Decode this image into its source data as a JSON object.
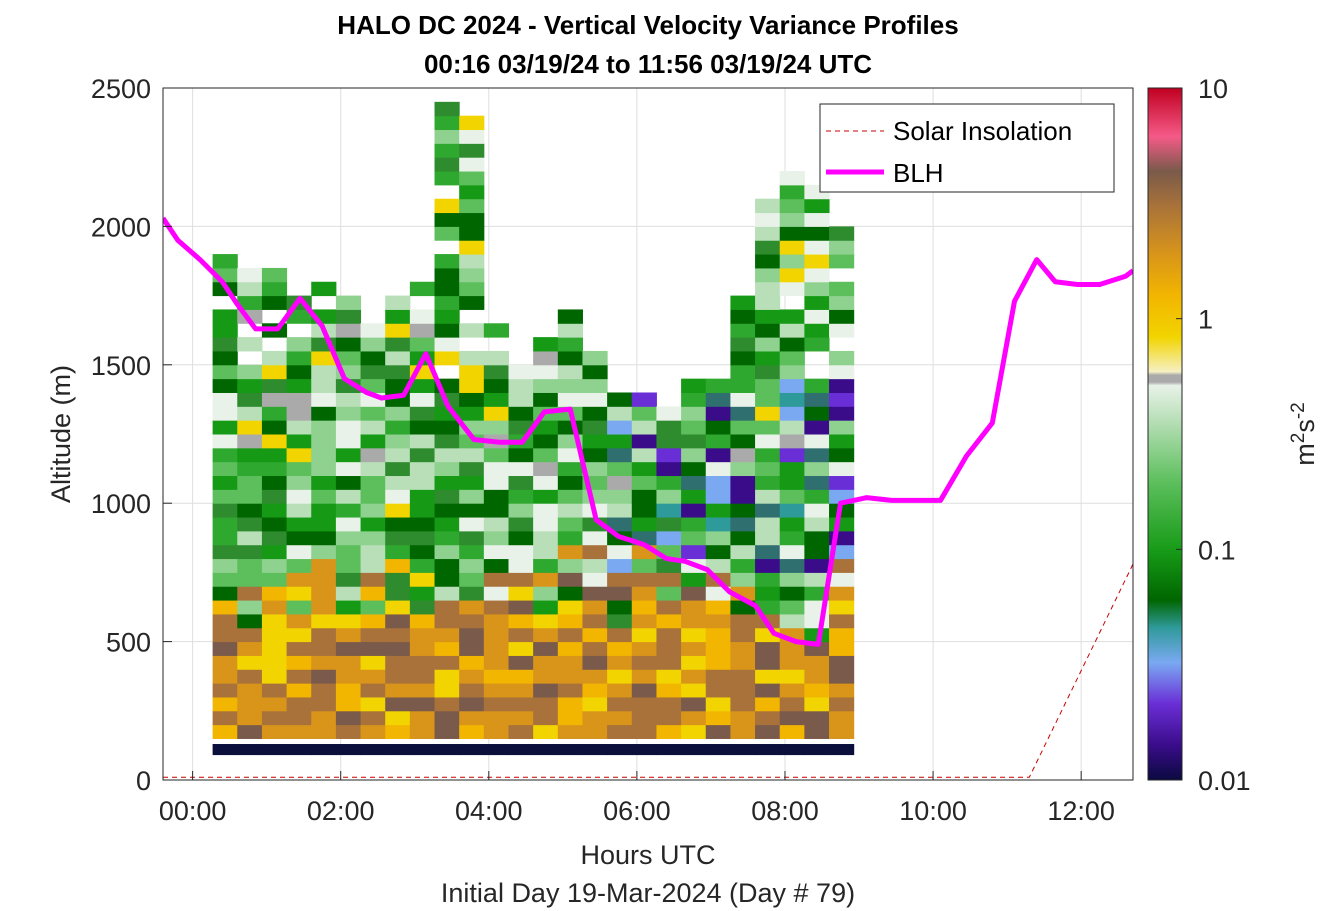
{
  "chart_data": {
    "type": "heatmap",
    "title": "HALO DC 2024 - Vertical Velocity Variance Profiles",
    "subtitle": "00:16 03/19/24 to 11:56 03/19/24  UTC",
    "xlabel": "Hours UTC",
    "xlabel2": "Initial Day 19-Mar-2024 (Day # 79)",
    "ylabel": "Altitude (m)",
    "colorbar_label_base": "m",
    "colorbar_label_sup1": "2",
    "colorbar_label_mid": "s",
    "colorbar_label_sup2": "-2",
    "xlim": [
      -0.4,
      12.7
    ],
    "ylim": [
      0,
      2500
    ],
    "x_ticks": [
      0,
      2,
      4,
      6,
      8,
      10,
      12
    ],
    "x_tick_labels": [
      "00:00",
      "02:00",
      "04:00",
      "06:00",
      "08:00",
      "10:00",
      "12:00"
    ],
    "y_ticks": [
      0,
      500,
      1000,
      1500,
      2000,
      2500
    ],
    "y_tick_labels": [
      "0",
      "500",
      "1000",
      "1500",
      "2000",
      "2500"
    ],
    "colorbar_scale": "log",
    "colorbar_range": [
      0.01,
      10
    ],
    "colorbar_ticks": [
      0.01,
      0.1,
      1,
      10
    ],
    "colorbar_tick_labels": [
      "0.01",
      "0.1",
      "1",
      "10"
    ],
    "grid": true,
    "legend_position": "top-right",
    "legend": [
      {
        "label": "Solar Insolation",
        "color": "#cc0000",
        "style": "dashed"
      },
      {
        "label": "BLH",
        "color": "#ff00ff",
        "style": "solid"
      }
    ],
    "heatmap": {
      "x_start": 0.27,
      "x_step": 0.333,
      "y_step": 50,
      "columns": 26,
      "summary": "Variance ~0.5-2 m2s-2 (orange/brown) below ~500 m, ~0.05-0.3 (green) aloft, dips to ~0.02 (blue/purple) near 1000-1400 m around 06:00-10:00"
    },
    "series": [
      {
        "name": "BLH",
        "color": "#ff00ff",
        "x": [
          -0.4,
          -0.2,
          0.1,
          0.4,
          0.6,
          0.85,
          1.15,
          1.45,
          1.75,
          2.05,
          2.35,
          2.55,
          2.85,
          3.15,
          3.45,
          3.8,
          4.15,
          4.45,
          4.75,
          5.1,
          5.45,
          5.75,
          6.1,
          6.4,
          6.65,
          6.95,
          7.25,
          7.6,
          7.85,
          8.15,
          8.45,
          8.75,
          9.1,
          9.45,
          9.75,
          10.1,
          10.45,
          10.8,
          11.1,
          11.4,
          11.65,
          11.95,
          12.25,
          12.6,
          12.7
        ],
        "y": [
          2030,
          1950,
          1880,
          1800,
          1720,
          1630,
          1630,
          1740,
          1640,
          1450,
          1400,
          1380,
          1390,
          1540,
          1350,
          1230,
          1220,
          1220,
          1330,
          1340,
          940,
          880,
          850,
          800,
          790,
          760,
          680,
          630,
          530,
          500,
          490,
          1000,
          1020,
          1010,
          1010,
          1010,
          1170,
          1290,
          1730,
          1880,
          1800,
          1790,
          1790,
          1820,
          1840
        ]
      },
      {
        "name": "Solar Insolation",
        "color": "#cc0000",
        "x": [
          -0.4,
          11.3,
          12.7
        ],
        "y": [
          10,
          10,
          780
        ]
      }
    ]
  }
}
